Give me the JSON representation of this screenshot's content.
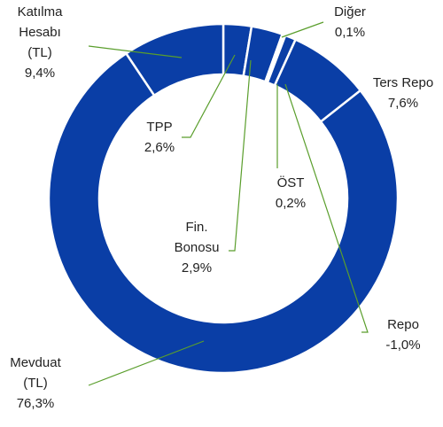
{
  "chart_data": {
    "type": "donut",
    "categories": [
      "TPP",
      "Fin. Bonosu",
      "Diğer",
      "ÖST",
      "Repo",
      "Ters Repo",
      "Mevduat (TL)",
      "Katılma Hesabı (TL)"
    ],
    "values": [
      2.6,
      2.9,
      0.1,
      0.2,
      -1.0,
      7.6,
      76.3,
      9.4
    ],
    "value_labels": [
      "2,6%",
      "2,9%",
      "0,1%",
      "0,2%",
      "-1,0%",
      "7,6%",
      "76,3%",
      "9,4%"
    ],
    "color": "#0a3ea6",
    "leader_color": "#5a9e2c"
  }
}
